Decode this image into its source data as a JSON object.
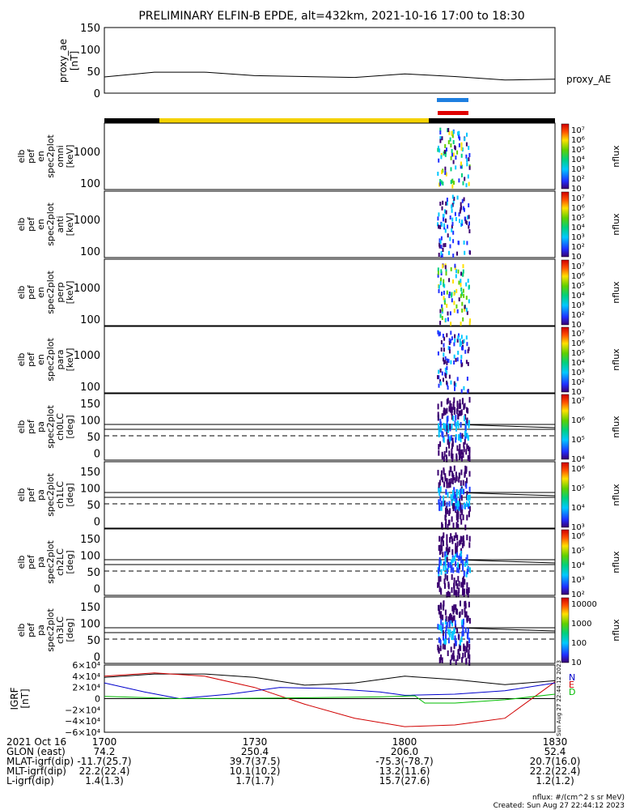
{
  "chart_data": {
    "type": "heatmap",
    "title": "PRELIMINARY ELFIN-B EPDE, alt=432km, 2021-10-16 17:00 to 18:30",
    "panels": [
      {
        "ylabel": [
          "proxy_ae",
          "[nT]"
        ],
        "yticks": [
          "150",
          "100",
          "50",
          "0"
        ],
        "ylim": [
          0,
          150
        ],
        "series_label": "proxy_AE",
        "line": {
          "x_min": [
            0,
            10,
            20,
            30,
            40,
            50,
            60,
            70,
            80,
            90
          ],
          "values": [
            37,
            48,
            48,
            40,
            38,
            36,
            44,
            38,
            30,
            32
          ]
        }
      },
      {
        "ylabel": [
          "elb",
          "pef",
          "en",
          "spec2plot",
          "omni",
          "[keV]"
        ],
        "yticks": [
          "1000",
          "100"
        ],
        "zticks": [
          "10⁷",
          "10⁶",
          "10⁵",
          "10⁴",
          "10³",
          "10²",
          "10"
        ],
        "zlabel": "nflux"
      },
      {
        "ylabel": [
          "elb",
          "pef",
          "en",
          "spec2plot",
          "anti",
          "[keV]"
        ],
        "yticks": [
          "1000",
          "100"
        ],
        "zticks": [
          "10⁷",
          "10⁶",
          "10⁵",
          "10⁴",
          "10³",
          "10²",
          "10"
        ],
        "zlabel": "nflux"
      },
      {
        "ylabel": [
          "elb",
          "pef",
          "en",
          "spec2plot",
          "perp",
          "[keV]"
        ],
        "yticks": [
          "1000",
          "100"
        ],
        "zticks": [
          "10⁷",
          "10⁶",
          "10⁵",
          "10⁴",
          "10³",
          "10²",
          "10"
        ],
        "zlabel": "nflux"
      },
      {
        "ylabel": [
          "elb",
          "pef",
          "en",
          "spec2plot",
          "para",
          "[keV]"
        ],
        "yticks": [
          "1000",
          "100"
        ],
        "zticks": [
          "10⁷",
          "10⁶",
          "10⁵",
          "10⁴",
          "10³",
          "10²",
          "10"
        ],
        "zlabel": "nflux"
      },
      {
        "ylabel": [
          "elb",
          "pef",
          "pa",
          "spec2plot",
          "ch0LC",
          "[deg]"
        ],
        "yticks": [
          "150",
          "100",
          "50",
          "0"
        ],
        "zticks": [
          "10⁷",
          "10⁶",
          "10⁵",
          "10⁴"
        ],
        "zlabel": "nflux"
      },
      {
        "ylabel": [
          "elb",
          "pef",
          "pa",
          "spec2plot",
          "ch1LC",
          "[deg]"
        ],
        "yticks": [
          "150",
          "100",
          "50",
          "0"
        ],
        "zticks": [
          "10⁶",
          "10⁵",
          "10⁴",
          "10³"
        ],
        "zlabel": "nflux"
      },
      {
        "ylabel": [
          "elb",
          "pef",
          "pa",
          "spec2plot",
          "ch2LC",
          "[deg]"
        ],
        "yticks": [
          "150",
          "100",
          "50",
          "0"
        ],
        "zticks": [
          "10⁶",
          "10⁵",
          "10⁴",
          "10³",
          "10²"
        ],
        "zlabel": "nflux"
      },
      {
        "ylabel": [
          "elb",
          "pef",
          "pa",
          "spec2plot",
          "ch3LC",
          "[deg]"
        ],
        "yticks": [
          "150",
          "100",
          "50",
          "0"
        ],
        "zticks": [
          "10000",
          "1000",
          "100",
          "10"
        ],
        "zlabel": "nflux"
      },
      {
        "ylabel": [
          "IGRF",
          "[nT]"
        ],
        "yticks": [
          "6×10⁴",
          "4×10⁴",
          "2×10⁴",
          "0",
          "−2×10⁴",
          "−4×10⁴",
          "−6×10⁴"
        ],
        "ylim": [
          -60000,
          60000
        ],
        "legend": [
          "N",
          "E",
          "D"
        ]
      }
    ],
    "xaxis": {
      "rows": [
        {
          "label": "2021 Oct 16",
          "values": [
            "1700",
            "1730",
            "1800",
            "1830"
          ]
        },
        {
          "label": "GLON (east)",
          "values": [
            "74.2",
            "250.4",
            "206.0",
            "52.4"
          ]
        },
        {
          "label": "MLAT-igrf(dip)",
          "values": [
            "-11.7(25.7)",
            "39.7(37.5)",
            "-75.3(-78.7)",
            "20.7(16.0)"
          ]
        },
        {
          "label": "MLT-igrf(dip)",
          "values": [
            "22.2(22.4)",
            "10.1(10.2)",
            "13.2(11.6)",
            "22.2(22.4)"
          ]
        },
        {
          "label": "L-igrf(dip)",
          "values": [
            "1.4(1.3)",
            "1.7(1.7)",
            "15.7(27.6)",
            "1.2(1.2)"
          ]
        }
      ]
    },
    "footer": [
      "nflux: #/(cm^2 s sr MeV)",
      "Created: Sun Aug 27 22:44:12 2023"
    ],
    "side_stamp": "Sun Aug 27 22:44:12 2023",
    "colors": {
      "blue_bar": "#1e7fe0",
      "red_bar": "#e00000",
      "yellow_bar": "#f5d200",
      "N": "#000000",
      "E": "#d00000",
      "D": "#0000cc",
      "green": "#00bb00"
    }
  }
}
